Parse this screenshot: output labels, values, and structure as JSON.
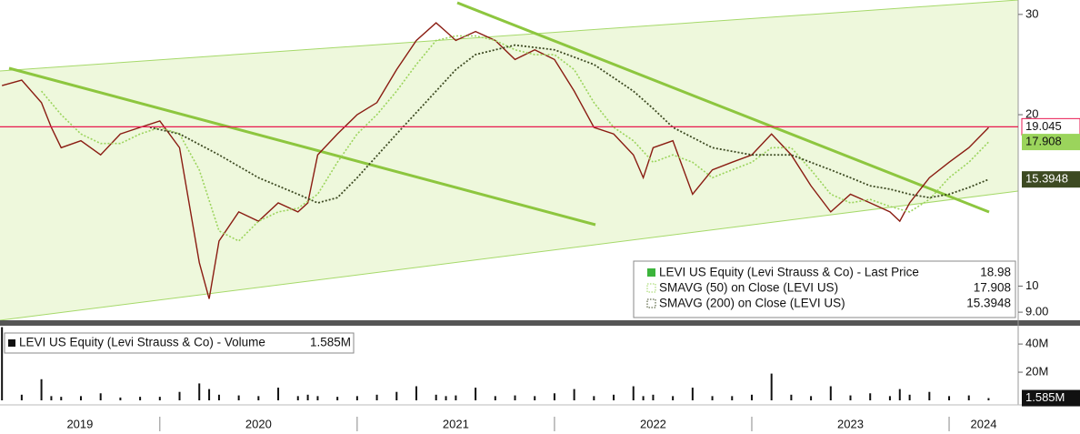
{
  "chart_data": [
    {
      "type": "line",
      "log_scale": true,
      "xlim": [
        2019.19,
        2024.35
      ],
      "ylim": [
        8.71,
        31.8
      ],
      "yticks": [
        {
          "value": 9,
          "label": "9.00"
        },
        10,
        20,
        30
      ],
      "price_marker": 19.045,
      "price_marker_color": "#e8174f",
      "series": [
        {
          "name": "LEVI US Equity (Levi Strauss & Co) - Last Price",
          "color": "#8a1c12",
          "x": [
            2019.2,
            2019.3,
            2019.4,
            2019.45,
            2019.5,
            2019.6,
            2019.7,
            2019.8,
            2019.9,
            2020.0,
            2020.1,
            2020.2,
            2020.25,
            2020.3,
            2020.4,
            2020.5,
            2020.6,
            2020.7,
            2020.75,
            2020.8,
            2020.9,
            2021.0,
            2021.1,
            2021.2,
            2021.3,
            2021.4,
            2021.45,
            2021.5,
            2021.6,
            2021.7,
            2021.8,
            2021.9,
            2022.0,
            2022.1,
            2022.2,
            2022.3,
            2022.4,
            2022.45,
            2022.5,
            2022.6,
            2022.7,
            2022.8,
            2022.9,
            2023.0,
            2023.1,
            2023.2,
            2023.3,
            2023.4,
            2023.5,
            2023.6,
            2023.7,
            2023.75,
            2023.8,
            2023.9,
            2024.0,
            2024.1,
            2024.2
          ],
          "values": [
            22.5,
            23,
            21,
            19,
            17.5,
            18,
            17,
            18.5,
            19,
            19.5,
            17.5,
            11,
            9.5,
            12,
            13.5,
            13,
            14,
            13.5,
            14,
            17,
            18.5,
            20,
            21,
            24,
            27,
            29,
            28,
            27,
            28,
            27,
            25,
            26,
            25,
            22,
            19,
            18.5,
            17,
            15.5,
            17.5,
            18,
            14.5,
            16,
            16.5,
            17,
            18.5,
            17,
            15,
            13.5,
            14.5,
            14,
            13.5,
            13,
            14,
            15.5,
            16.5,
            17.5,
            18.98
          ]
        },
        {
          "name": "SMAVG (50)  on Close (LEVI US)",
          "color": "#9bd45c",
          "x": [
            2019.4,
            2019.5,
            2019.6,
            2019.7,
            2019.8,
            2019.9,
            2020.0,
            2020.1,
            2020.2,
            2020.3,
            2020.4,
            2020.5,
            2020.6,
            2020.7,
            2020.8,
            2020.9,
            2021.0,
            2021.1,
            2021.2,
            2021.3,
            2021.4,
            2021.5,
            2021.6,
            2021.7,
            2021.8,
            2021.9,
            2022.0,
            2022.1,
            2022.2,
            2022.3,
            2022.4,
            2022.5,
            2022.6,
            2022.7,
            2022.8,
            2022.9,
            2023.0,
            2023.1,
            2023.2,
            2023.3,
            2023.4,
            2023.5,
            2023.6,
            2023.7,
            2023.8,
            2023.9,
            2024.0,
            2024.1,
            2024.2
          ],
          "values": [
            22,
            20,
            18.5,
            17.8,
            17.8,
            18.5,
            19,
            18.5,
            16,
            12.5,
            12,
            13,
            13.5,
            13.7,
            14.5,
            16.5,
            18.5,
            20,
            22,
            24.5,
            27,
            27.5,
            27.5,
            27,
            26,
            25.5,
            25.5,
            24,
            21,
            19,
            18,
            16.5,
            17,
            16.5,
            15.5,
            16,
            16.5,
            17.5,
            17.5,
            16,
            14.5,
            14,
            14.2,
            13.8,
            13.5,
            14.2,
            15.5,
            16.5,
            17.908
          ]
        },
        {
          "name": "SMAVG (200)  on Close (LEVI US)",
          "color": "#3d4a22",
          "x": [
            2019.95,
            2020.1,
            2020.3,
            2020.5,
            2020.7,
            2020.8,
            2020.9,
            2021.0,
            2021.2,
            2021.4,
            2021.5,
            2021.6,
            2021.7,
            2021.8,
            2022.0,
            2022.2,
            2022.4,
            2022.5,
            2022.6,
            2022.8,
            2023.0,
            2023.2,
            2023.4,
            2023.5,
            2023.6,
            2023.7,
            2023.8,
            2023.9,
            2024.0,
            2024.1,
            2024.2
          ],
          "values": [
            19,
            18.5,
            17,
            15.5,
            14.5,
            14,
            14.3,
            15.5,
            18.5,
            22,
            24,
            25.5,
            26,
            26.5,
            26,
            24.5,
            22,
            20.5,
            19,
            17.5,
            17,
            17,
            16,
            15.5,
            15,
            14.8,
            14.5,
            14.3,
            14.5,
            14.9,
            15.3948
          ]
        }
      ]
    },
    {
      "type": "bar",
      "xlim": [
        2019.19,
        2024.35
      ],
      "ylim": [
        0,
        53000000
      ],
      "yticks": [
        {
          "value": 20000000,
          "label": "20M"
        },
        {
          "value": 40000000,
          "label": "40M"
        }
      ],
      "xticks": [
        {
          "value": 2019,
          "label": "2019"
        },
        {
          "value": 2020,
          "label": "2020"
        },
        {
          "value": 2021,
          "label": "2021"
        },
        {
          "value": 2022,
          "label": "2022"
        },
        {
          "value": 2023,
          "label": "2023"
        },
        {
          "value": 2024,
          "label": "2024"
        }
      ],
      "series": [
        {
          "name": "LEVI US Equity (Levi Strauss & Co) - Volume",
          "color": "#111111",
          "last_value_label": "1.585M",
          "x": [
            2019.2,
            2019.3,
            2019.4,
            2019.45,
            2019.5,
            2019.6,
            2019.7,
            2019.8,
            2019.9,
            2020.0,
            2020.1,
            2020.2,
            2020.25,
            2020.3,
            2020.4,
            2020.5,
            2020.6,
            2020.7,
            2020.75,
            2020.8,
            2020.9,
            2021.0,
            2021.1,
            2021.2,
            2021.3,
            2021.4,
            2021.45,
            2021.5,
            2021.6,
            2021.7,
            2021.8,
            2021.9,
            2022.0,
            2022.1,
            2022.2,
            2022.3,
            2022.4,
            2022.45,
            2022.5,
            2022.6,
            2022.7,
            2022.8,
            2022.9,
            2023.0,
            2023.1,
            2023.2,
            2023.3,
            2023.4,
            2023.5,
            2023.6,
            2023.7,
            2023.75,
            2023.8,
            2023.9,
            2024.0,
            2024.1,
            2024.2
          ],
          "values": [
            52000000,
            4000000,
            15000000,
            3000000,
            2500000,
            3000000,
            5000000,
            2000000,
            2500000,
            2500000,
            6000000,
            12000000,
            8000000,
            4000000,
            3500000,
            3000000,
            9000000,
            3000000,
            4000000,
            3000000,
            2500000,
            3000000,
            4000000,
            6000000,
            10000000,
            4000000,
            3000000,
            3500000,
            9000000,
            3000000,
            3500000,
            3000000,
            5000000,
            8000000,
            3000000,
            4000000,
            10000000,
            3000000,
            4000000,
            3000000,
            9000000,
            3000000,
            3000000,
            4000000,
            19000000,
            4000000,
            3000000,
            10000000,
            3500000,
            5000000,
            3000000,
            8000000,
            4000000,
            6000000,
            3000000,
            3500000,
            1585000
          ]
        }
      ]
    }
  ]
}
